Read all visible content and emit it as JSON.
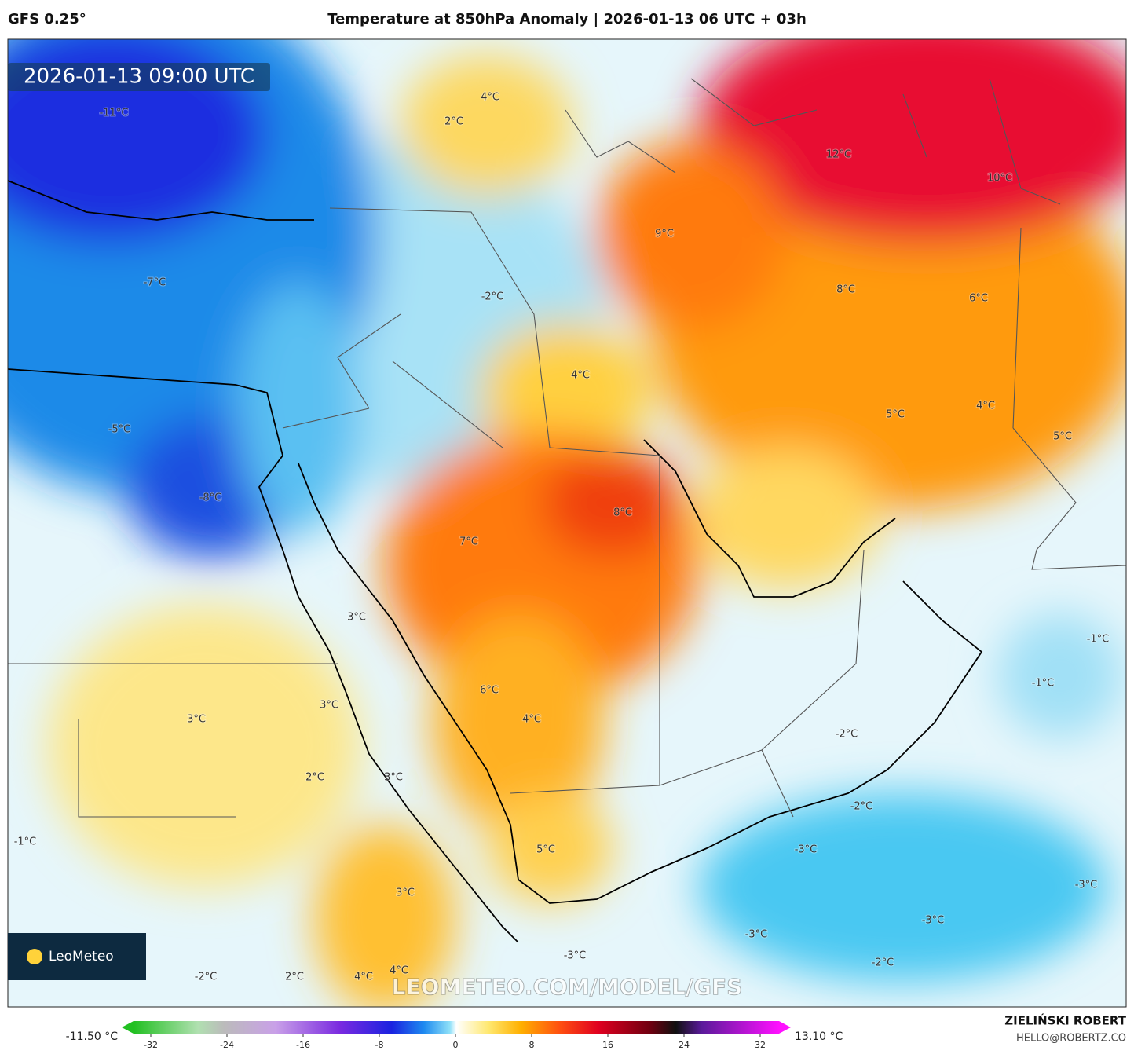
{
  "header": {
    "model": "GFS 0.25°",
    "title": "Temperature at 850hPa Anomaly | 2026-01-13 06 UTC + 03h"
  },
  "map": {
    "timestamp": "2026-01-13 09:00 UTC",
    "watermark": "LEOMETEO.COM/MODEL/GFS",
    "logo": "LeoMeteo",
    "labels": [
      "-11°C",
      "-7°C",
      "-5°C",
      "-8°C",
      "4°C",
      "2°C",
      "12°C",
      "10°C",
      "9°C",
      "-2°C",
      "8°C",
      "6°C",
      "4°C",
      "5°C",
      "4°C",
      "5°C",
      "8°C",
      "7°C",
      "3°C",
      "-1°C",
      "-1°C",
      "6°C",
      "3°C",
      "3°C",
      "4°C",
      "-2°C",
      "2°C",
      "3°C",
      "-2°C",
      "-1°C",
      "5°C",
      "-3°C",
      "3°C",
      "-3°C",
      "-3°C",
      "-3°C",
      "-3°C",
      "-2°C",
      "2°C",
      "4°C",
      "4°C",
      "-2°C"
    ]
  },
  "colorbar": {
    "min_label": "-11.50 °C",
    "max_label": "13.10 °C",
    "ticks": [
      -32,
      -24,
      -16,
      -8,
      0,
      8,
      16,
      24,
      32
    ]
  },
  "footer": {
    "author": "ZIELIŃSKI ROBERT",
    "email": "HELLO@ROBERTZ.CO"
  }
}
